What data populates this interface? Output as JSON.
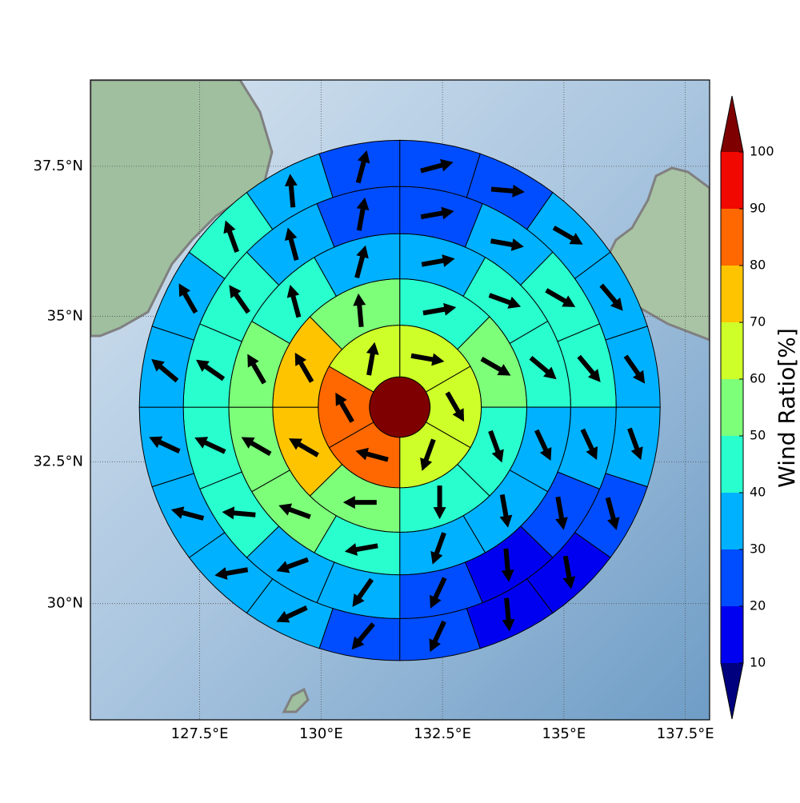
{
  "chart_data": {
    "type": "polar-sector-map",
    "projection": "mercator",
    "xlim": [
      125.25,
      138.0
    ],
    "ylim": [
      27.9,
      38.9
    ],
    "xticks": [
      {
        "value": 127.5,
        "label": "127.5°E"
      },
      {
        "value": 130,
        "label": "130°E"
      },
      {
        "value": 132.5,
        "label": "132.5°E"
      },
      {
        "value": 135,
        "label": "135°E"
      },
      {
        "value": 137.5,
        "label": "137.5°E"
      }
    ],
    "yticks": [
      {
        "value": 30,
        "label": "30°N"
      },
      {
        "value": 32.5,
        "label": "32.5°N"
      },
      {
        "value": 35,
        "label": "35°N"
      },
      {
        "value": 37.5,
        "label": "37.5°N"
      }
    ],
    "grid": true,
    "center": [
      131.62,
      33.45
    ],
    "rings": [
      {
        "r": [
          0,
          58
        ],
        "values": [
          100
        ],
        "directions": [
          null
        ]
      },
      {
        "r": [
          58,
          156
        ],
        "values": [
          65,
          65,
          65,
          85,
          85,
          65
        ],
        "directions": [
          100,
          150,
          200,
          285,
          330,
          10
        ]
      },
      {
        "r": [
          156,
          243
        ],
        "values": [
          45,
          55,
          45,
          45,
          55,
          75,
          75,
          55
        ],
        "directions": [
          80,
          120,
          160,
          180,
          270,
          300,
          330,
          355
        ]
      },
      {
        "r": [
          243,
          327
        ],
        "values": [
          35,
          45,
          45,
          35,
          35,
          35,
          45,
          55,
          55,
          55,
          45,
          35
        ],
        "directions": [
          80,
          110,
          130,
          155,
          170,
          200,
          260,
          290,
          300,
          330,
          345,
          15
        ]
      },
      {
        "r": [
          327,
          414
        ],
        "values": [
          25,
          35,
          45,
          45,
          35,
          25,
          15,
          25,
          35,
          35,
          45,
          45,
          45,
          45,
          35,
          25
        ],
        "directions": [
          80,
          100,
          120,
          140,
          155,
          170,
          175,
          205,
          215,
          250,
          275,
          295,
          305,
          325,
          345,
          10
        ]
      },
      {
        "r": [
          414,
          498
        ],
        "values": [
          25,
          25,
          35,
          35,
          35,
          35,
          25,
          15,
          15,
          25,
          25,
          35,
          35,
          35,
          35,
          35,
          35,
          45,
          35,
          25
        ],
        "directions": [
          75,
          95,
          120,
          140,
          145,
          160,
          165,
          170,
          175,
          205,
          220,
          245,
          260,
          285,
          295,
          310,
          330,
          340,
          355,
          15
        ]
      }
    ],
    "colorbar": {
      "label": "Wind Ratio[%]",
      "levels": [
        10,
        20,
        30,
        40,
        50,
        60,
        70,
        80,
        90,
        100
      ],
      "colors": [
        "#00007f",
        "#0000f1",
        "#004dff",
        "#00b1ff",
        "#29ffce",
        "#7dff7a",
        "#ceff29",
        "#ffc400",
        "#ff6800",
        "#f10800",
        "#7f0000"
      ],
      "extend": "both"
    }
  }
}
